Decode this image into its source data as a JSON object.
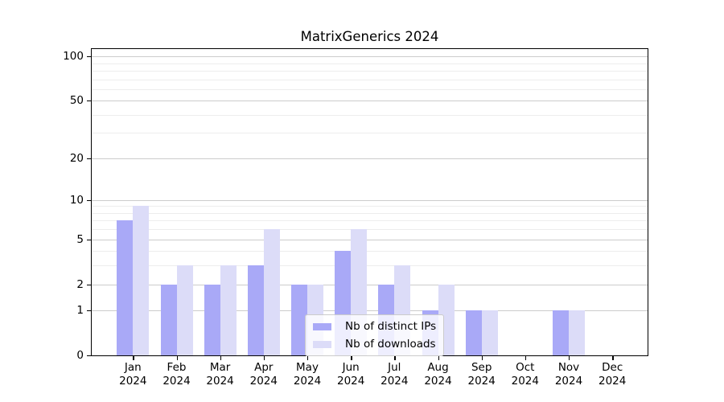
{
  "chart_data": {
    "type": "bar",
    "title": "MatrixGenerics 2024",
    "categories": [
      "Jan",
      "Feb",
      "Mar",
      "Apr",
      "May",
      "Jun",
      "Jul",
      "Aug",
      "Sep",
      "Oct",
      "Nov",
      "Dec"
    ],
    "category_sub_label": "2024",
    "series": [
      {
        "name": "Nb of distinct IPs",
        "color": "#a9a9f7",
        "values": [
          7,
          2,
          2,
          3,
          2,
          4,
          2,
          1,
          1,
          0,
          1,
          0
        ]
      },
      {
        "name": "Nb of downloads",
        "color": "#dcdcf8",
        "values": [
          9,
          3,
          3,
          6,
          2,
          6,
          3,
          2,
          1,
          0,
          1,
          0
        ]
      }
    ],
    "yscale": "log1p",
    "ylim": [
      0,
      112
    ],
    "yticks": [
      0,
      1,
      2,
      5,
      10,
      20,
      50,
      100
    ],
    "yticks_minor": [
      3,
      4,
      6,
      7,
      8,
      9,
      30,
      40,
      60,
      70,
      80,
      90
    ],
    "grid": true,
    "legend_position": "lower center",
    "colors": {
      "major_grid": "#cccccc",
      "minor_grid": "#ededed",
      "axis": "#000000",
      "text": "#000000"
    }
  }
}
